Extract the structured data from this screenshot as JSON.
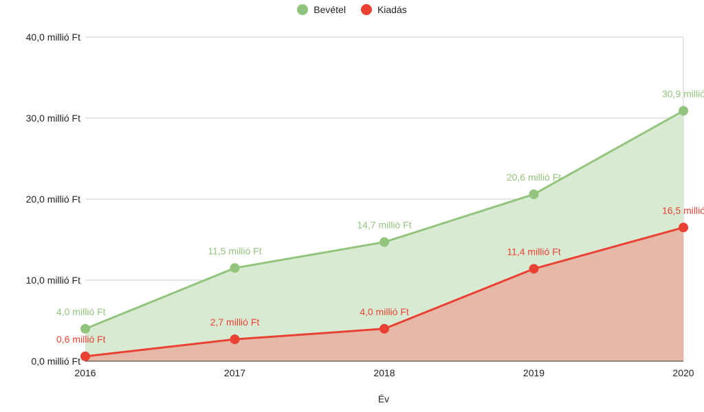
{
  "chart_data": {
    "type": "area",
    "categories": [
      "2016",
      "2017",
      "2018",
      "2019",
      "2020"
    ],
    "series": [
      {
        "name": "Bevétel",
        "color": "#93c47d",
        "fill": "#d9ead3",
        "values": [
          4.0,
          11.5,
          14.7,
          20.6,
          30.9
        ],
        "labels": [
          "4,0 millió Ft",
          "11,5 millió Ft",
          "14,7 millió Ft",
          "20,6 millió Ft",
          "30,9 millió"
        ]
      },
      {
        "name": "Kiadás",
        "color": "#e94235",
        "fill": "#e6b8a8",
        "values": [
          0.6,
          2.7,
          4.0,
          11.4,
          16.5
        ],
        "labels": [
          "0,6 millió Ft",
          "2,7 millió Ft",
          "4,0 millió Ft",
          "11,4 millió Ft",
          "16,5 millió"
        ]
      }
    ],
    "y_ticks": [
      {
        "value": 0,
        "label": "0,0 millió Ft"
      },
      {
        "value": 10,
        "label": "10,0 millió Ft"
      },
      {
        "value": 20,
        "label": "20,0 millió Ft"
      },
      {
        "value": 30,
        "label": "30,0 millió Ft"
      },
      {
        "value": 40,
        "label": "40,0 millió Ft"
      }
    ],
    "ylim": [
      0,
      40
    ],
    "xlabel": "Év",
    "ylabel": "",
    "grid": true,
    "legend": "top-center"
  }
}
